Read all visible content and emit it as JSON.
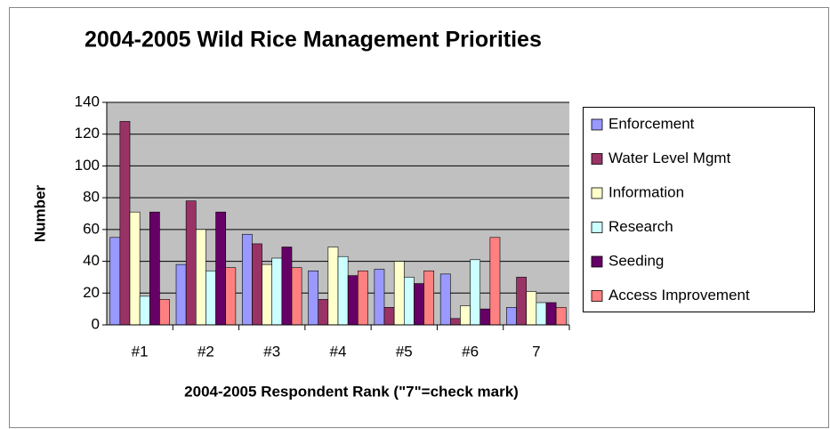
{
  "chart_data": {
    "type": "bar",
    "title": "2004-2005 Wild Rice Management Priorities",
    "xlabel": "2004-2005 Respondent Rank (\"7\"=check mark)",
    "ylabel": "Number",
    "categories": [
      "#1",
      "#2",
      "#3",
      "#4",
      "#5",
      "#6",
      "7"
    ],
    "series": [
      {
        "name": "Enforcement",
        "color": "#9999ff",
        "values": [
          55,
          38,
          57,
          34,
          35,
          32,
          11
        ]
      },
      {
        "name": "Water Level Mgmt",
        "color": "#993366",
        "values": [
          128,
          78,
          51,
          16,
          11,
          4,
          30
        ]
      },
      {
        "name": "Information",
        "color": "#ffffcc",
        "values": [
          71,
          60,
          38,
          49,
          40,
          12,
          21
        ]
      },
      {
        "name": "Research",
        "color": "#ccffff",
        "values": [
          18,
          34,
          42,
          43,
          30,
          41,
          14
        ]
      },
      {
        "name": "Seeding",
        "color": "#660066",
        "values": [
          71,
          71,
          49,
          31,
          26,
          10,
          14
        ]
      },
      {
        "name": "Access Improvement",
        "color": "#ff8080",
        "values": [
          16,
          36,
          36,
          34,
          34,
          55,
          11
        ]
      }
    ],
    "ylim": [
      0,
      140
    ],
    "yticks": [
      0,
      20,
      40,
      60,
      80,
      100,
      120,
      140
    ],
    "grid": true,
    "legend": "right"
  }
}
